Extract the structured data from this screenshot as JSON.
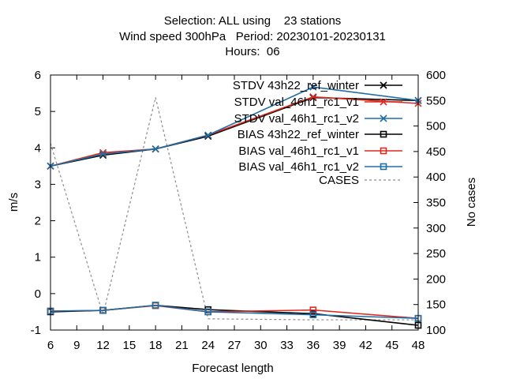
{
  "header": {
    "line1": "Selection: ALL using    23 stations",
    "line2": "Wind speed 300hPa   Period: 20230101-20230131",
    "line3": "Hours:  06"
  },
  "chart_data": {
    "type": "line",
    "xlabel": "Forecast length",
    "ylabel": "m/s",
    "y2label": "No cases",
    "xlim": [
      6,
      48
    ],
    "ylim": [
      -1,
      6
    ],
    "y2lim": [
      100,
      600
    ],
    "x_ticks": [
      "6",
      "9",
      "12",
      "15",
      "18",
      "21",
      "24",
      "27",
      "30",
      "33",
      "36",
      "39",
      "42",
      "45",
      "48"
    ],
    "y_ticks": [
      "-1",
      "0",
      "1",
      "2",
      "3",
      "4",
      "5",
      "6"
    ],
    "y2_ticks": [
      "100",
      "150",
      "200",
      "250",
      "300",
      "350",
      "400",
      "450",
      "500",
      "550",
      "600"
    ],
    "grid": false,
    "legend_position": "top-right",
    "series": [
      {
        "name": "STDV 43h22_ref_winter",
        "axis": "y1",
        "color": "#000000",
        "marker": "x",
        "dash": false,
        "x": [
          6,
          12,
          18,
          24,
          36,
          48
        ],
        "y": [
          3.5,
          3.8,
          3.97,
          4.32,
          5.38,
          5.3
        ]
      },
      {
        "name": "STDV val_46h1_rc1_v1",
        "axis": "y1",
        "color": "#dc2a1f",
        "marker": "x",
        "dash": false,
        "x": [
          6,
          12,
          18,
          24,
          36,
          48
        ],
        "y": [
          3.5,
          3.87,
          3.97,
          4.35,
          5.4,
          5.22
        ]
      },
      {
        "name": "STDV val_46h1_rc1_v2",
        "axis": "y1",
        "color": "#1f6ea5",
        "marker": "x",
        "dash": false,
        "x": [
          6,
          12,
          18,
          24,
          36,
          48
        ],
        "y": [
          3.5,
          3.83,
          3.97,
          4.35,
          5.67,
          5.3
        ]
      },
      {
        "name": "BIAS 43h22_ref_winter",
        "axis": "y1",
        "color": "#000000",
        "marker": "square",
        "dash": false,
        "x": [
          6,
          12,
          18,
          24,
          36,
          48
        ],
        "y": [
          -0.5,
          -0.46,
          -0.32,
          -0.44,
          -0.55,
          -0.87
        ]
      },
      {
        "name": "BIAS val_46h1_rc1_v1",
        "axis": "y1",
        "color": "#dc2a1f",
        "marker": "square",
        "dash": false,
        "x": [
          6,
          12,
          18,
          24,
          36,
          48
        ],
        "y": [
          -0.48,
          -0.46,
          -0.33,
          -0.5,
          -0.45,
          -0.68
        ]
      },
      {
        "name": "BIAS val_46h1_rc1_v2",
        "axis": "y1",
        "color": "#1f6ea5",
        "marker": "square",
        "dash": false,
        "x": [
          6,
          12,
          18,
          24,
          36,
          48
        ],
        "y": [
          -0.48,
          -0.46,
          -0.32,
          -0.5,
          -0.58,
          -0.68
        ]
      },
      {
        "name": "CASES",
        "axis": "y2",
        "color": "#8c8c8c",
        "marker": "none",
        "dash": true,
        "x": [
          6,
          12,
          18,
          24,
          36,
          48
        ],
        "y": [
          466,
          130,
          556,
          122,
          120,
          120
        ]
      }
    ]
  }
}
